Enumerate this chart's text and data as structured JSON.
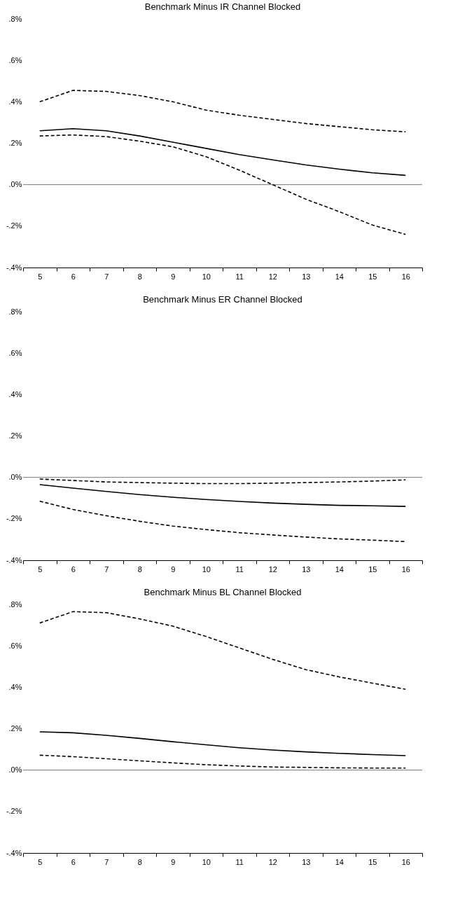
{
  "chart_data": [
    {
      "type": "line",
      "title": "Benchmark Minus IR Channel Blocked",
      "categories": [
        "5",
        "6",
        "7",
        "8",
        "9",
        "10",
        "11",
        "12",
        "13",
        "14",
        "15",
        "16"
      ],
      "series": [
        {
          "color": "#000000",
          "line_style": "dashed",
          "values": [
            0.4,
            0.455,
            0.45,
            0.43,
            0.4,
            0.36,
            0.335,
            0.315,
            0.295,
            0.28,
            0.265,
            0.255
          ]
        },
        {
          "color": "#000000",
          "line_style": "solid",
          "values": [
            0.26,
            0.27,
            0.26,
            0.235,
            0.205,
            0.175,
            0.145,
            0.12,
            0.095,
            0.075,
            0.057,
            0.045
          ]
        },
        {
          "color": "#000000",
          "line_style": "dashed",
          "values": [
            0.235,
            0.24,
            0.232,
            0.21,
            0.183,
            0.135,
            0.07,
            0.0,
            -0.07,
            -0.13,
            -0.195,
            -0.24
          ]
        }
      ],
      "ylim": [
        -0.4,
        0.8
      ],
      "yticks": [
        {
          "value": -0.4,
          "label": "-.4%"
        },
        {
          "value": -0.2,
          "label": "-.2%"
        },
        {
          "value": 0,
          "label": ".0%"
        },
        {
          "value": 0.2,
          "label": ".2%"
        },
        {
          "value": 0.4,
          "label": ".4%"
        },
        {
          "value": 0.6,
          "label": ".6%"
        },
        {
          "value": 0.8,
          "label": ".8%"
        }
      ],
      "ref_lines": [
        {
          "axis": "y",
          "value": 0,
          "color": "#555555"
        }
      ],
      "grid": false
    },
    {
      "type": "line",
      "title": "Benchmark Minus ER Channel Blocked",
      "categories": [
        "5",
        "6",
        "7",
        "8",
        "9",
        "10",
        "11",
        "12",
        "13",
        "14",
        "15",
        "16"
      ],
      "series": [
        {
          "color": "#000000",
          "line_style": "dashed",
          "values": [
            -0.008,
            -0.015,
            -0.022,
            -0.025,
            -0.028,
            -0.03,
            -0.03,
            -0.028,
            -0.025,
            -0.022,
            -0.018,
            -0.012
          ]
        },
        {
          "color": "#000000",
          "line_style": "solid",
          "values": [
            -0.035,
            -0.052,
            -0.068,
            -0.083,
            -0.096,
            -0.107,
            -0.116,
            -0.124,
            -0.13,
            -0.135,
            -0.137,
            -0.14
          ]
        },
        {
          "color": "#000000",
          "line_style": "dashed",
          "values": [
            -0.115,
            -0.155,
            -0.185,
            -0.212,
            -0.235,
            -0.252,
            -0.267,
            -0.278,
            -0.288,
            -0.297,
            -0.303,
            -0.31
          ]
        }
      ],
      "ylim": [
        -0.4,
        0.8
      ],
      "yticks": [
        {
          "value": -0.4,
          "label": "-.4%"
        },
        {
          "value": -0.2,
          "label": "-.2%"
        },
        {
          "value": 0,
          "label": ".0%"
        },
        {
          "value": 0.2,
          "label": ".2%"
        },
        {
          "value": 0.4,
          "label": ".4%"
        },
        {
          "value": 0.6,
          "label": ".6%"
        },
        {
          "value": 0.8,
          "label": ".8%"
        }
      ],
      "ref_lines": [
        {
          "axis": "y",
          "value": 0,
          "color": "#555555"
        }
      ],
      "grid": false
    },
    {
      "type": "line",
      "title": "Benchmark Minus BL Channel Blocked",
      "categories": [
        "5",
        "6",
        "7",
        "8",
        "9",
        "10",
        "11",
        "12",
        "13",
        "14",
        "15",
        "16"
      ],
      "series": [
        {
          "color": "#000000",
          "line_style": "dashed",
          "values": [
            0.71,
            0.765,
            0.76,
            0.73,
            0.695,
            0.645,
            0.59,
            0.535,
            0.485,
            0.45,
            0.42,
            0.39
          ]
        },
        {
          "color": "#000000",
          "line_style": "solid",
          "values": [
            0.185,
            0.18,
            0.168,
            0.153,
            0.137,
            0.122,
            0.108,
            0.097,
            0.088,
            0.081,
            0.075,
            0.07
          ]
        },
        {
          "color": "#000000",
          "line_style": "dashed",
          "values": [
            0.072,
            0.065,
            0.055,
            0.045,
            0.035,
            0.026,
            0.02,
            0.015,
            0.013,
            0.011,
            0.01,
            0.01
          ]
        }
      ],
      "ylim": [
        -0.4,
        0.8
      ],
      "yticks": [
        {
          "value": -0.4,
          "label": "-.4%"
        },
        {
          "value": -0.2,
          "label": "-.2%"
        },
        {
          "value": 0,
          "label": ".0%"
        },
        {
          "value": 0.2,
          "label": ".2%"
        },
        {
          "value": 0.4,
          "label": ".4%"
        },
        {
          "value": 0.6,
          "label": ".6%"
        },
        {
          "value": 0.8,
          "label": ".8%"
        }
      ],
      "ref_lines": [
        {
          "axis": "y",
          "value": 0,
          "color": "#555555"
        }
      ],
      "grid": false
    }
  ]
}
